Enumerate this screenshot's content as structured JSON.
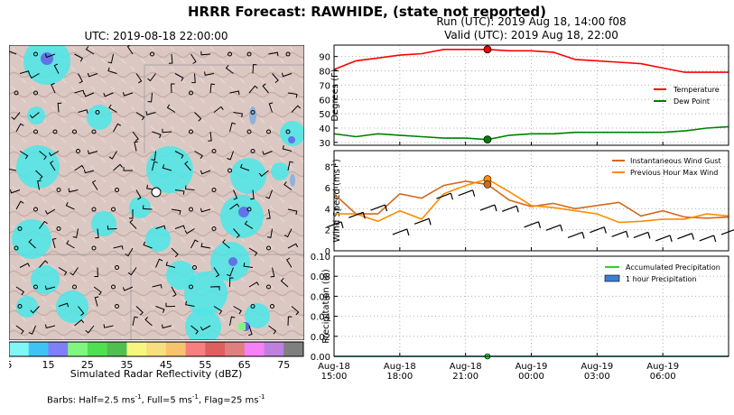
{
  "title": "HRRR Forecast: RAWHIDE, (state not reported)",
  "map": {
    "utc_label": "UTC: 2019-08-18 22:00:00",
    "colorbar_label": "Simulated Radar Reflectivity (dBZ)",
    "colorbar_ticks": [
      "5",
      "15",
      "25",
      "35",
      "45",
      "55",
      "65",
      "75"
    ],
    "colorbar_colors": [
      "#7ff7f7",
      "#3fc3f7",
      "#7f7ff7",
      "#7ff77f",
      "#4fdf4f",
      "#4fbf4f",
      "#f7f77f",
      "#f7df7f",
      "#f7c36f",
      "#f77f7f",
      "#df5f5f",
      "#df7f7f",
      "#f77ff7",
      "#bf7fdf",
      "#7f7f7f"
    ],
    "barb_note_parts": [
      "Barbs: Half=2.5 ms",
      "-1",
      ", Full=5 ms",
      "-1",
      ", Flag=25 ms",
      "-1"
    ]
  },
  "run": {
    "line1": "Run (UTC): 2019 Aug 18, 14:00 f08",
    "line2": "Valid (UTC): 2019 Aug 18, 22:00"
  },
  "chart_data": [
    {
      "type": "line",
      "ylabel": "Degrees (F)",
      "ylim": [
        28,
        98
      ],
      "yticks": [
        30,
        40,
        50,
        60,
        70,
        80,
        90
      ],
      "x_hours": [
        15,
        16,
        17,
        18,
        19,
        20,
        21,
        22,
        23,
        24,
        25,
        26,
        27,
        28,
        29,
        30,
        31,
        32,
        33
      ],
      "series": [
        {
          "name": "Temperature",
          "color": "#ff0000",
          "values": [
            81,
            87,
            89,
            91,
            92,
            95,
            95,
            95,
            94,
            94,
            93,
            88,
            87,
            86,
            85,
            82,
            79,
            79,
            79
          ]
        },
        {
          "name": "Dew Point",
          "color": "#008000",
          "values": [
            36,
            34,
            36,
            35,
            34,
            33,
            33,
            32,
            35,
            36,
            36,
            37,
            37,
            37,
            37,
            37,
            38,
            40,
            41
          ]
        }
      ],
      "marker_hour": 22,
      "legend": "right",
      "grid": true
    },
    {
      "type": "line",
      "ylabel": "Wind Speed (ms",
      "ylabel_sup": "-1",
      "ylabel_end": ")",
      "ylim": [
        0,
        9.5
      ],
      "yticks": [
        0,
        2,
        4,
        6,
        8
      ],
      "series": [
        {
          "name": "Instantaneous Wind Gust",
          "color": "#d2691e",
          "values": [
            5.4,
            3.5,
            3.5,
            5.4,
            5.0,
            6.2,
            6.6,
            6.3,
            4.8,
            4.2,
            4.5,
            4.0,
            4.3,
            4.6,
            3.3,
            3.8,
            3.2,
            3.1,
            3.2
          ]
        },
        {
          "name": "Previous Hour Max Wind",
          "color": "#ff8c00",
          "values": [
            3.5,
            3.5,
            2.8,
            3.8,
            3.0,
            5.4,
            6.2,
            6.8,
            5.6,
            4.3,
            4.1,
            3.8,
            3.5,
            2.7,
            2.8,
            3.0,
            3.0,
            3.5,
            3.3
          ]
        }
      ],
      "legend": "top-right",
      "grid": true
    },
    {
      "type": "area",
      "ylabel": "Precipitation (in)",
      "ylim": [
        0,
        0.1
      ],
      "yticks": [
        "0.00",
        "0.02",
        "0.04",
        "0.06",
        "0.08",
        "0.10"
      ],
      "series": [
        {
          "name": "Accumulated Precipitation",
          "color": "#33cc33",
          "values": [
            0,
            0,
            0,
            0,
            0,
            0,
            0,
            0,
            0,
            0,
            0,
            0,
            0,
            0,
            0,
            0,
            0,
            0,
            0
          ]
        },
        {
          "name": "1 hour Precipitation",
          "color": "#3a7fd5",
          "values": [
            0,
            0,
            0,
            0,
            0,
            0,
            0,
            0,
            0,
            0,
            0,
            0,
            0,
            0,
            0,
            0,
            0,
            0,
            0
          ]
        }
      ],
      "xtick_labels": [
        [
          "Aug-18",
          "15:00"
        ],
        [
          "Aug-18",
          "18:00"
        ],
        [
          "Aug-18",
          "21:00"
        ],
        [
          "Aug-19",
          "00:00"
        ],
        [
          "Aug-19",
          "03:00"
        ],
        [
          "Aug-19",
          "06:00"
        ]
      ],
      "legend": "top-right",
      "grid": true
    }
  ]
}
